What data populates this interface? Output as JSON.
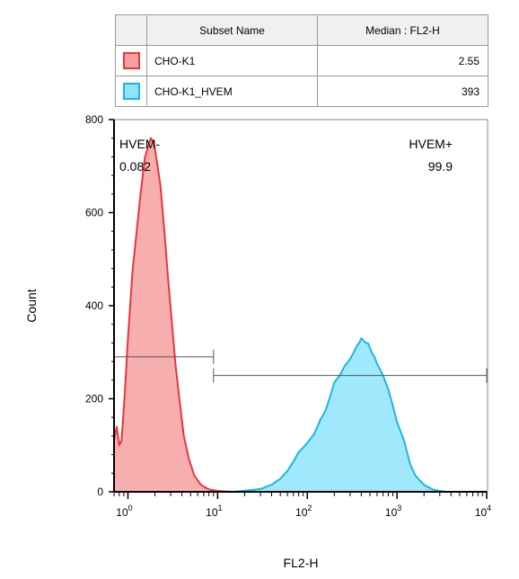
{
  "legend": {
    "header_name": "Subset Name",
    "header_value": "Median : FL2-H",
    "rows": [
      {
        "name": "CHO-K1",
        "value": "2.55",
        "fill": "#f4a0a0",
        "stroke": "#e8363d"
      },
      {
        "name": "CHO-K1_HVEM",
        "value": "393",
        "fill": "#8fe4fb",
        "stroke": "#1cb6e4"
      }
    ]
  },
  "chart_data": {
    "type": "area",
    "title": "",
    "xlabel": "FL2-H",
    "ylabel": "Count",
    "x_scale": "log",
    "xlim": [
      0.7,
      10000
    ],
    "ylim": [
      0,
      800
    ],
    "x_ticks": [
      {
        "value": 1,
        "base": "10",
        "exp": "0"
      },
      {
        "value": 10,
        "base": "10",
        "exp": "1"
      },
      {
        "value": 100,
        "base": "10",
        "exp": "2"
      },
      {
        "value": 1000,
        "base": "10",
        "exp": "3"
      },
      {
        "value": 10000,
        "base": "10",
        "exp": "4"
      }
    ],
    "y_ticks": [
      0,
      200,
      400,
      600,
      800
    ],
    "series": [
      {
        "name": "CHO-K1",
        "fill": "#f4a0a0",
        "stroke": "#e8363d",
        "points": [
          [
            0.7,
            110
          ],
          [
            0.75,
            140
          ],
          [
            0.8,
            100
          ],
          [
            0.85,
            110
          ],
          [
            0.92,
            210
          ],
          [
            1.0,
            330
          ],
          [
            1.12,
            470
          ],
          [
            1.25,
            560
          ],
          [
            1.4,
            650
          ],
          [
            1.55,
            720
          ],
          [
            1.7,
            745
          ],
          [
            1.8,
            760
          ],
          [
            1.95,
            750
          ],
          [
            2.1,
            710
          ],
          [
            2.3,
            660
          ],
          [
            2.55,
            560
          ],
          [
            2.8,
            460
          ],
          [
            3.1,
            360
          ],
          [
            3.4,
            270
          ],
          [
            3.8,
            190
          ],
          [
            4.2,
            120
          ],
          [
            4.8,
            70
          ],
          [
            5.5,
            35
          ],
          [
            6.5,
            15
          ],
          [
            8,
            5
          ],
          [
            10,
            2
          ],
          [
            14,
            0
          ],
          [
            20,
            0
          ],
          [
            10000,
            0
          ]
        ]
      },
      {
        "name": "CHO-K1_HVEM",
        "fill": "#8fe4fb",
        "stroke": "#1cb6e4",
        "points": [
          [
            0.7,
            0
          ],
          [
            15,
            0
          ],
          [
            22,
            3
          ],
          [
            30,
            6
          ],
          [
            40,
            15
          ],
          [
            50,
            28
          ],
          [
            60,
            45
          ],
          [
            70,
            65
          ],
          [
            80,
            85
          ],
          [
            90,
            95
          ],
          [
            100,
            105
          ],
          [
            120,
            125
          ],
          [
            140,
            155
          ],
          [
            160,
            175
          ],
          [
            180,
            205
          ],
          [
            200,
            235
          ],
          [
            230,
            250
          ],
          [
            260,
            270
          ],
          [
            300,
            285
          ],
          [
            330,
            300
          ],
          [
            360,
            315
          ],
          [
            380,
            320
          ],
          [
            400,
            330
          ],
          [
            440,
            322
          ],
          [
            480,
            318
          ],
          [
            520,
            300
          ],
          [
            560,
            290
          ],
          [
            600,
            275
          ],
          [
            700,
            250
          ],
          [
            800,
            220
          ],
          [
            900,
            185
          ],
          [
            1000,
            150
          ],
          [
            1200,
            110
          ],
          [
            1400,
            60
          ],
          [
            1600,
            35
          ],
          [
            2000,
            15
          ],
          [
            2500,
            5
          ],
          [
            3000,
            2
          ],
          [
            3500,
            0
          ],
          [
            10000,
            0
          ]
        ]
      }
    ],
    "gates": [
      {
        "name": "HVEM-",
        "x": [
          0.7,
          9
        ],
        "y": 290,
        "label": "HVEM-",
        "value": "0.082",
        "anchor": "start"
      },
      {
        "name": "HVEM+",
        "x": [
          9,
          10000
        ],
        "y": 250,
        "label": "HVEM+",
        "value": "99.9",
        "anchor": "end"
      }
    ]
  }
}
